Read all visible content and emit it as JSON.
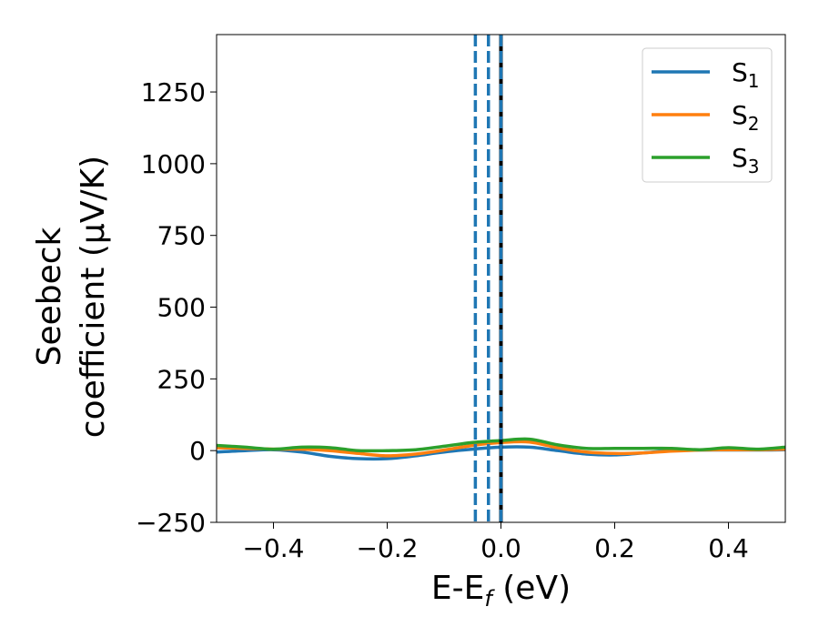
{
  "chart_data": {
    "type": "line",
    "title": "",
    "xlabel": {
      "main": "E-E",
      "sub": "f",
      "suffix": " (eV)"
    },
    "ylabel": {
      "line1": "Seebeck",
      "line2": "coefficient  (μV/K)"
    },
    "xlim": [
      -0.5,
      0.5
    ],
    "ylim": [
      -250,
      1450
    ],
    "xticks": [
      -0.4,
      -0.2,
      0.0,
      0.2,
      0.4
    ],
    "xtick_labels": [
      "−0.4",
      "−0.2",
      "0.0",
      "0.2",
      "0.4"
    ],
    "yticks": [
      -250,
      0,
      250,
      500,
      750,
      1000,
      1250
    ],
    "ytick_labels": [
      "−250",
      "0",
      "250",
      "500",
      "750",
      "1000",
      "1250"
    ],
    "grid": false,
    "legend_placement": "top-right",
    "series": [
      {
        "name": "S",
        "sub": "1",
        "color": "#1f77b4",
        "points": [
          [
            -0.5,
            -5
          ],
          [
            -0.45,
            0
          ],
          [
            -0.4,
            3
          ],
          [
            -0.35,
            -5
          ],
          [
            -0.3,
            -20
          ],
          [
            -0.25,
            -28
          ],
          [
            -0.2,
            -28
          ],
          [
            -0.15,
            -18
          ],
          [
            -0.1,
            -5
          ],
          [
            -0.05,
            5
          ],
          [
            0.0,
            12
          ],
          [
            0.05,
            12
          ],
          [
            0.1,
            0
          ],
          [
            0.15,
            -12
          ],
          [
            0.2,
            -15
          ],
          [
            0.25,
            -8
          ],
          [
            0.3,
            0
          ],
          [
            0.35,
            2
          ],
          [
            0.4,
            2
          ],
          [
            0.45,
            2
          ],
          [
            0.5,
            3
          ]
        ]
      },
      {
        "name": "S",
        "sub": "2",
        "color": "#ff7f0e",
        "points": [
          [
            -0.5,
            10
          ],
          [
            -0.45,
            8
          ],
          [
            -0.4,
            5
          ],
          [
            -0.35,
            5
          ],
          [
            -0.3,
            0
          ],
          [
            -0.25,
            -10
          ],
          [
            -0.2,
            -18
          ],
          [
            -0.15,
            -12
          ],
          [
            -0.1,
            2
          ],
          [
            -0.05,
            18
          ],
          [
            0.0,
            28
          ],
          [
            0.05,
            30
          ],
          [
            0.1,
            10
          ],
          [
            0.15,
            -5
          ],
          [
            0.2,
            -10
          ],
          [
            0.25,
            -8
          ],
          [
            0.3,
            -2
          ],
          [
            0.35,
            2
          ],
          [
            0.4,
            3
          ],
          [
            0.45,
            3
          ],
          [
            0.5,
            5
          ]
        ]
      },
      {
        "name": "S",
        "sub": "3",
        "color": "#2ca02c",
        "points": [
          [
            -0.5,
            18
          ],
          [
            -0.45,
            12
          ],
          [
            -0.4,
            5
          ],
          [
            -0.35,
            12
          ],
          [
            -0.3,
            10
          ],
          [
            -0.25,
            0
          ],
          [
            -0.2,
            0
          ],
          [
            -0.15,
            3
          ],
          [
            -0.1,
            15
          ],
          [
            -0.05,
            28
          ],
          [
            0.0,
            35
          ],
          [
            0.05,
            40
          ],
          [
            0.1,
            20
          ],
          [
            0.15,
            8
          ],
          [
            0.2,
            8
          ],
          [
            0.25,
            8
          ],
          [
            0.3,
            8
          ],
          [
            0.35,
            3
          ],
          [
            0.4,
            10
          ],
          [
            0.45,
            5
          ],
          [
            0.5,
            12
          ]
        ]
      }
    ],
    "vertical_lines": [
      {
        "x": -0.045,
        "color": "#1f77b4",
        "style": "dashed"
      },
      {
        "x": -0.022,
        "color": "#1f77b4",
        "style": "dashed"
      },
      {
        "x": 0.0,
        "color": "#000000",
        "style": "solid"
      },
      {
        "x": 0.0,
        "color": "#1f77b4",
        "style": "dashed"
      }
    ]
  }
}
